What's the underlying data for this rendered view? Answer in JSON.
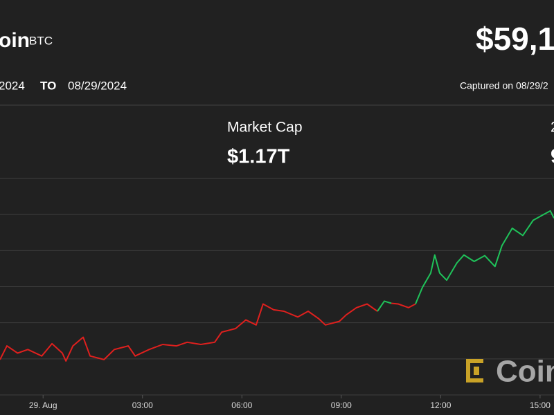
{
  "header": {
    "name": "oin",
    "symbol": "BTC",
    "price": "$59,1",
    "range_from": "2024",
    "range_to_label": "TO",
    "range_to": "08/29/2024",
    "captured": "Captured on 08/29/2"
  },
  "stats": [
    {
      "label": "Market Cap",
      "value": "$1.17T"
    },
    {
      "label": "2",
      "value": "9"
    }
  ],
  "watermark": "Coin",
  "chart_data": {
    "type": "line",
    "x": [
      -1.3,
      -1.09,
      -0.77,
      -0.46,
      -0.04,
      0.27,
      0.58,
      0.69,
      0.9,
      1.21,
      1.42,
      1.84,
      2.15,
      2.57,
      2.78,
      3.2,
      3.61,
      4.03,
      4.35,
      4.76,
      5.18,
      5.39,
      5.81,
      6.12,
      6.43,
      6.64,
      6.96,
      7.27,
      7.69,
      8.0,
      8.31,
      8.52,
      8.94,
      9.15,
      9.46,
      9.78,
      10.09,
      10.3,
      10.51,
      10.72,
      11.03,
      11.24,
      11.45,
      11.7,
      11.82,
      11.97,
      12.18,
      12.49,
      12.7,
      13.01,
      13.33,
      13.64,
      13.85,
      14.16,
      14.48,
      14.79,
      15.1,
      15.31,
      15.42
    ],
    "series": [
      {
        "color": "#e0201e",
        "values": [
          58990,
          59180,
          59080,
          59130,
          59040,
          59210,
          59080,
          58970,
          59180,
          59300,
          59040,
          58990,
          59130,
          59180,
          59040,
          59130,
          59200,
          59180,
          59230,
          59200,
          59230,
          59370,
          59420,
          59540,
          59470,
          59760,
          59680,
          59660,
          59580,
          59660,
          59560,
          59470,
          59520,
          59610,
          59710,
          59760,
          59660,
          null,
          59770,
          59760,
          59710,
          59760,
          null,
          null,
          null,
          null,
          null,
          null,
          null,
          null,
          null,
          null,
          null,
          null,
          null,
          null,
          null,
          null,
          null
        ]
      },
      {
        "color": "#1fc35a",
        "values": [
          null,
          null,
          null,
          null,
          null,
          null,
          null,
          null,
          null,
          null,
          null,
          null,
          null,
          null,
          null,
          null,
          null,
          null,
          null,
          null,
          null,
          null,
          null,
          null,
          null,
          null,
          null,
          null,
          null,
          null,
          null,
          null,
          null,
          null,
          null,
          null,
          59660,
          59800,
          59770,
          null,
          null,
          59760,
          59990,
          60190,
          60440,
          60190,
          60090,
          60330,
          60440,
          60350,
          60430,
          60280,
          60570,
          60810,
          60710,
          60920,
          61000,
          61050,
          60950
        ]
      }
    ],
    "xlim": [
      -1.3,
      15.42
    ],
    "xticks": [
      {
        "value": 0,
        "label": "29. Aug"
      },
      {
        "value": 3,
        "label": "03:00"
      },
      {
        "value": 6,
        "label": "06:00"
      },
      {
        "value": 9,
        "label": "09:00"
      },
      {
        "value": 12,
        "label": "12:00"
      },
      {
        "value": 15,
        "label": "15:00"
      }
    ],
    "ylim": [
      58500,
      61500
    ],
    "ygrid": [
      58500,
      59000,
      59500,
      60000,
      60500,
      61000,
      61500
    ],
    "grid": true
  }
}
